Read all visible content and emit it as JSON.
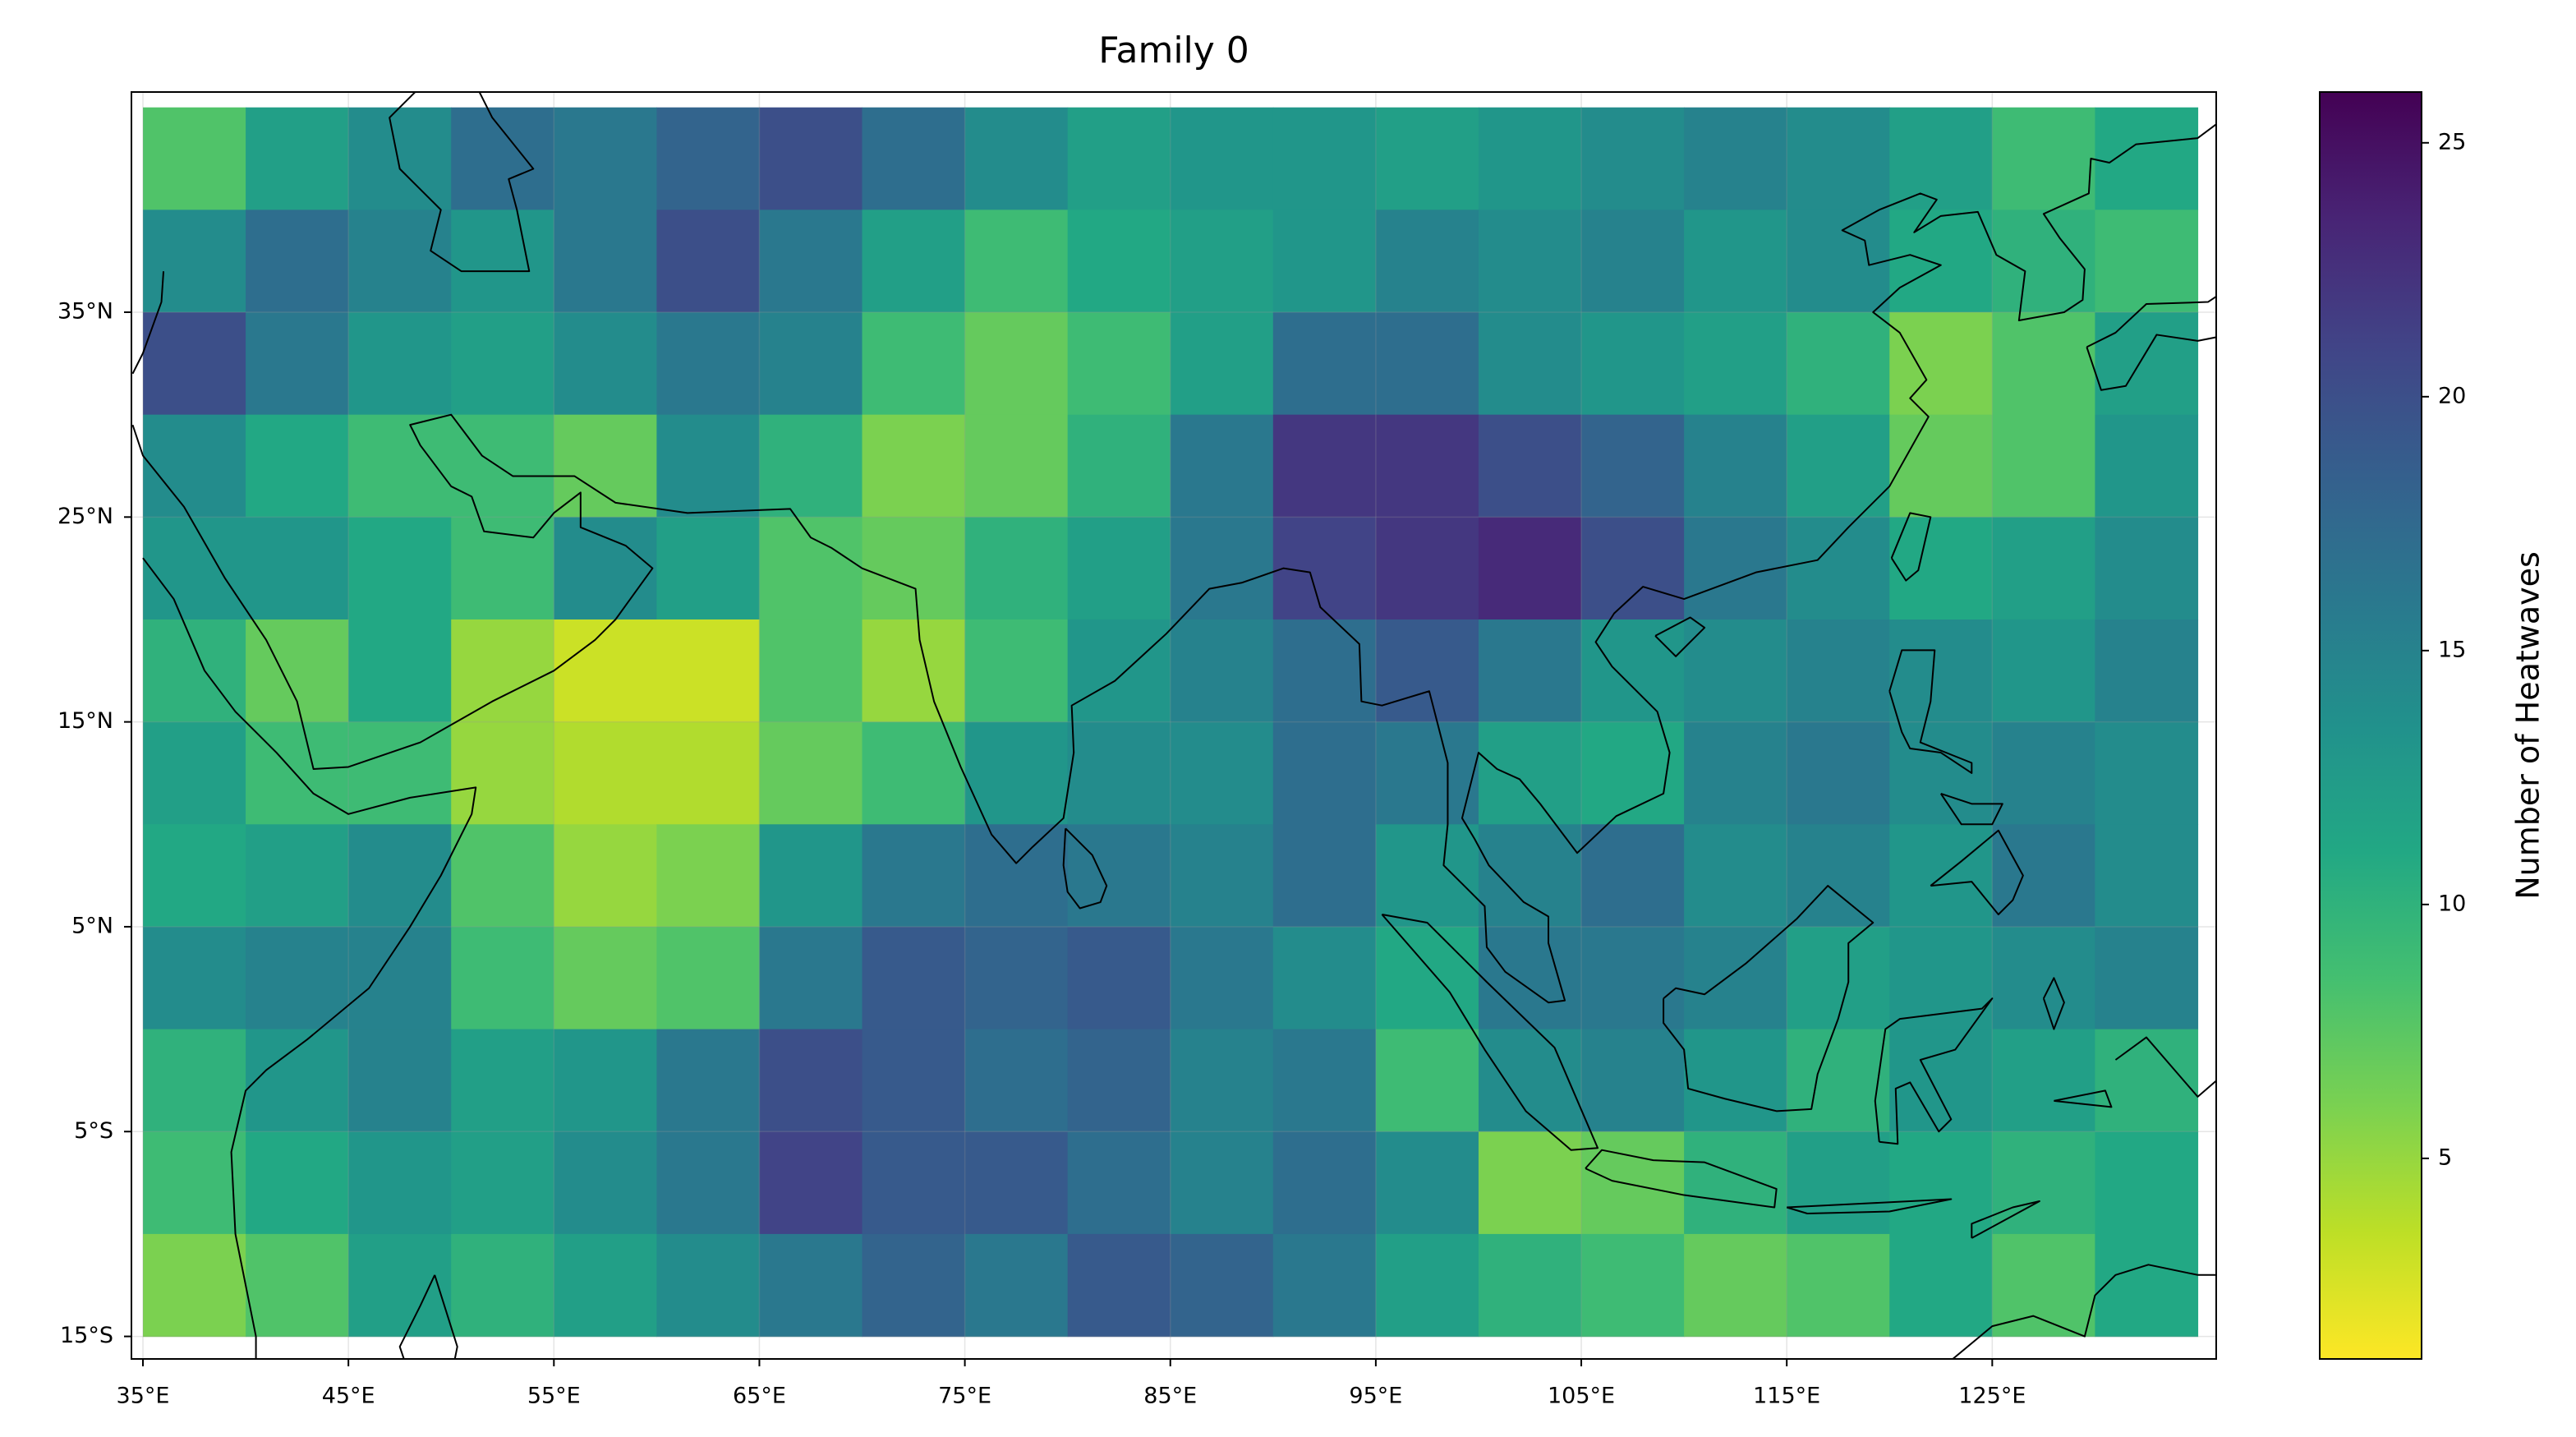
{
  "chart_data": {
    "type": "heatmap",
    "title": "Family 0",
    "colorbar_label": "Number of Heatwaves",
    "colormap": "viridis_r",
    "grid": true,
    "xlim": [
      34.44,
      135.9
    ],
    "ylim": [
      -16.1,
      45.75
    ],
    "data_extent": [
      35,
      135,
      -15,
      45
    ],
    "xticks": [
      {
        "value": 35,
        "label": "35°E"
      },
      {
        "value": 45,
        "label": "45°E"
      },
      {
        "value": 55,
        "label": "55°E"
      },
      {
        "value": 65,
        "label": "65°E"
      },
      {
        "value": 75,
        "label": "75°E"
      },
      {
        "value": 85,
        "label": "85°E"
      },
      {
        "value": 95,
        "label": "95°E"
      },
      {
        "value": 105,
        "label": "105°E"
      },
      {
        "value": 115,
        "label": "115°E"
      },
      {
        "value": 125,
        "label": "125°E"
      }
    ],
    "yticks": [
      {
        "value": -15,
        "label": "15°S"
      },
      {
        "value": -5,
        "label": "5°S"
      },
      {
        "value": 5,
        "label": "5°N"
      },
      {
        "value": 15,
        "label": "15°N"
      },
      {
        "value": 25,
        "label": "25°N"
      },
      {
        "value": 35,
        "label": "35°N"
      }
    ],
    "clim": [
      1.05,
      26
    ],
    "cticks": [
      5,
      10,
      15,
      20,
      25
    ],
    "values": [
      [
        8,
        12,
        14,
        17,
        16,
        18,
        20,
        17,
        14,
        12,
        13,
        13,
        12,
        13,
        14,
        15,
        14,
        12,
        9,
        11
      ],
      [
        14,
        17,
        15,
        13,
        16,
        20,
        16,
        12,
        9,
        11,
        12,
        13,
        15,
        14,
        15,
        13,
        14,
        11,
        10,
        9
      ],
      [
        20,
        16,
        13,
        12,
        14,
        16,
        15,
        9,
        7,
        9,
        12,
        17,
        17,
        14,
        13,
        12,
        10,
        6,
        8,
        12
      ],
      [
        14,
        11,
        9,
        9,
        7,
        14,
        10,
        6,
        7,
        10,
        16,
        22,
        22,
        20,
        18,
        15,
        12,
        7,
        8,
        13
      ],
      [
        13,
        13,
        11,
        9,
        14,
        12,
        8,
        7,
        10,
        12,
        16,
        21,
        22,
        23,
        20,
        16,
        14,
        11,
        12,
        14
      ],
      [
        10,
        7,
        11,
        5,
        3,
        3,
        8,
        5,
        9,
        13,
        15,
        17,
        19,
        16,
        13,
        14,
        15,
        14,
        13,
        15
      ],
      [
        12,
        9,
        9,
        5,
        4,
        4,
        7,
        9,
        13,
        14,
        14,
        17,
        16,
        12,
        11,
        15,
        16,
        14,
        15,
        14
      ],
      [
        11,
        12,
        14,
        8,
        5,
        6,
        13,
        16,
        17,
        16,
        15,
        17,
        13,
        15,
        17,
        14,
        15,
        13,
        16,
        14
      ],
      [
        14,
        15,
        15,
        9,
        7,
        8,
        16,
        19,
        18,
        19,
        16,
        14,
        11,
        16,
        16,
        15,
        12,
        13,
        14,
        15
      ],
      [
        10,
        13,
        15,
        12,
        13,
        16,
        20,
        19,
        17,
        18,
        15,
        16,
        9,
        14,
        15,
        13,
        10,
        13,
        12,
        10
      ],
      [
        9,
        11,
        13,
        12,
        14,
        16,
        21,
        19,
        19,
        17,
        15,
        17,
        14,
        6,
        7,
        10,
        12,
        11,
        10,
        11
      ],
      [
        6,
        8,
        12,
        10,
        12,
        14,
        16,
        18,
        16,
        19,
        18,
        16,
        12,
        10,
        9,
        7,
        8,
        11,
        8,
        11
      ]
    ]
  }
}
